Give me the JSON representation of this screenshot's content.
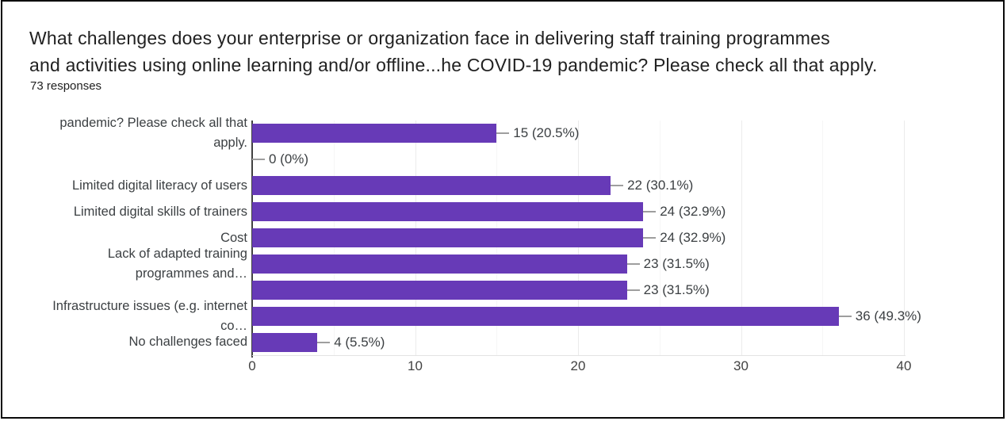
{
  "header": {
    "title_lines": [
      "What challenges does your enterprise or organization face in delivering staff training programmes",
      "and activities using online learning and/or offline...he COVID-19 pandemic? Please check all that apply."
    ],
    "responses_count": "73 responses"
  },
  "chart_data": {
    "type": "bar",
    "orientation": "horizontal",
    "title": "What challenges does your enterprise or organization face in delivering staff training programmes and activities using online learning and/or offline...he COVID-19 pandemic? Please check all that apply.",
    "subtitle": "73 responses",
    "total_responses": 73,
    "categories": [
      "pandemic? Please check all that apply.",
      "",
      "Limited digital literacy of users",
      "Limited digital skills of trainers",
      "Cost",
      "Lack of adapted training programmes and…",
      "",
      "Infrastructure issues (e.g. internet co…",
      "No challenges faced"
    ],
    "label_lines": [
      [
        "pandemic? Please check all that",
        "apply."
      ],
      [],
      [
        "Limited digital literacy of users"
      ],
      [
        "Limited digital skills of trainers"
      ],
      [
        "Cost"
      ],
      [
        "Lack of adapted training",
        "programmes and…"
      ],
      [],
      [
        "Infrastructure issues (e.g. internet",
        "co…"
      ],
      [
        "No challenges faced"
      ]
    ],
    "values": [
      15,
      0,
      22,
      24,
      24,
      23,
      23,
      36,
      4
    ],
    "value_labels": [
      "15 (20.5%)",
      "0 (0%)",
      "22 (30.1%)",
      "24 (32.9%)",
      "24 (32.9%)",
      "23 (31.5%)",
      "23 (31.5%)",
      "36 (49.3%)",
      "4 (5.5%)"
    ],
    "xlim": [
      0,
      40
    ],
    "x_ticks": [
      "0",
      "10",
      "20",
      "30",
      "40"
    ],
    "x_tick_values": [
      0,
      10,
      20,
      30,
      40
    ],
    "minor_grid_step": 5,
    "grid": true,
    "legend": "none",
    "bar_color": "#673ab7",
    "axis_color": "#424242",
    "leader_color": "#9e9e9e",
    "label_color": "#3c4043"
  }
}
